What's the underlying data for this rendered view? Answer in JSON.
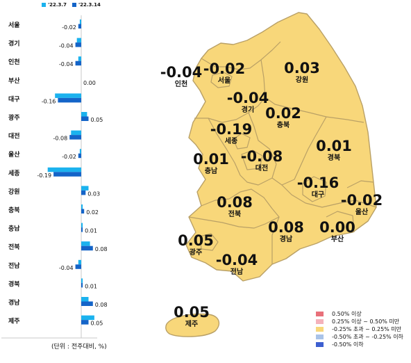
{
  "legend": {
    "series_a": "'22.3.7",
    "series_b": "'22.3.14",
    "color_a": "#1bb2ee",
    "color_b": "#1464c8"
  },
  "unit_note": "(단위 : 전주대비, %)",
  "chart_data": {
    "type": "bar",
    "orientation": "horizontal",
    "categories": [
      "서울",
      "경기",
      "인천",
      "부산",
      "대구",
      "광주",
      "대전",
      "울산",
      "세종",
      "강원",
      "충북",
      "충남",
      "전북",
      "전남",
      "경북",
      "경남",
      "제주"
    ],
    "series": [
      {
        "name": "'22.3.7",
        "values": [
          -0.01,
          -0.03,
          -0.02,
          0.0,
          -0.18,
          0.04,
          -0.07,
          -0.01,
          -0.23,
          0.05,
          0.01,
          0.01,
          0.06,
          -0.02,
          0.01,
          0.05,
          0.09
        ]
      },
      {
        "name": "'22.3.14",
        "values": [
          -0.02,
          -0.04,
          -0.04,
          0.0,
          -0.16,
          0.05,
          -0.08,
          -0.02,
          -0.19,
          0.03,
          0.02,
          0.01,
          0.08,
          -0.04,
          0.01,
          0.08,
          0.05
        ]
      }
    ],
    "data_labels": [
      "-0.02",
      "-0.04",
      "-0.04",
      "0.00",
      "-0.16",
      "0.05",
      "-0.08",
      "-0.02",
      "-0.19",
      "0.03",
      "0.02",
      "0.01",
      "0.08",
      "-0.04",
      "0.01",
      "0.08",
      "0.05"
    ]
  },
  "map": {
    "fill": "#f8d77a",
    "border": "#b9a066",
    "regions": [
      {
        "id": "incheon",
        "name": "인천",
        "value": "-0.04"
      },
      {
        "id": "seoul",
        "name": "서울",
        "value": "-0.02"
      },
      {
        "id": "gangwon",
        "name": "강원",
        "value": "0.03"
      },
      {
        "id": "gyeonggi",
        "name": "경기",
        "value": "-0.04"
      },
      {
        "id": "chungbuk",
        "name": "충북",
        "value": "0.02"
      },
      {
        "id": "sejong",
        "name": "세종",
        "value": "-0.19"
      },
      {
        "id": "chungnam",
        "name": "충남",
        "value": "0.01"
      },
      {
        "id": "daejeon",
        "name": "대전",
        "value": "-0.08"
      },
      {
        "id": "gyeongbuk",
        "name": "경북",
        "value": "0.01"
      },
      {
        "id": "daegu",
        "name": "대구",
        "value": "-0.16"
      },
      {
        "id": "ulsan",
        "name": "울산",
        "value": "-0.02"
      },
      {
        "id": "jeonbuk",
        "name": "전북",
        "value": "0.08"
      },
      {
        "id": "gyeongnam",
        "name": "경남",
        "value": "0.08"
      },
      {
        "id": "busan",
        "name": "부산",
        "value": "0.00"
      },
      {
        "id": "gwangju",
        "name": "광주",
        "value": "0.05"
      },
      {
        "id": "jeonnam",
        "name": "전남",
        "value": "-0.04"
      },
      {
        "id": "jeju",
        "name": "제주",
        "value": "0.05"
      }
    ]
  },
  "map_legend": [
    {
      "label": "0.50% 이상",
      "color": "#e8707a"
    },
    {
      "label": "0.25% 이상 ~ 0.50% 미만",
      "color": "#f4b2bb"
    },
    {
      "label": "-0.25% 초과 ~ 0.25% 미만",
      "color": "#f8d77a"
    },
    {
      "label": "-0.50% 초과 ~ -0.25% 이하",
      "color": "#a9c3e8"
    },
    {
      "label": "-0.50% 이하",
      "color": "#3d5fd0"
    }
  ]
}
